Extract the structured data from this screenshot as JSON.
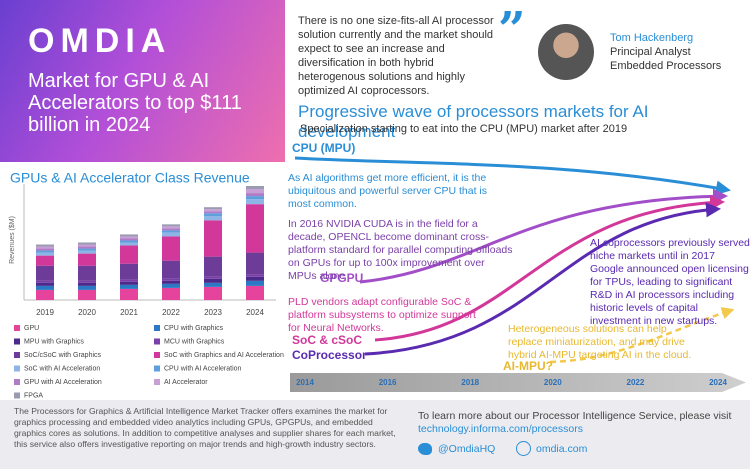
{
  "header": {
    "logo": "OMDIA",
    "title": "Market for GPU & AI Accelerators to top $111 billion in 2024"
  },
  "quote": {
    "text": "There is no one size-fits-all AI processor solution currently and the market should expect to see an increase and diversification in both hybrid heterogenous solutions and highly optimized AI coprocessors.",
    "name": "Tom Hackenberg",
    "role": "Principal Analyst",
    "department": "Embedded Processors"
  },
  "chart_data": {
    "type": "bar",
    "title": "GPUs & AI Accelerator Class Revenue",
    "y_label": "Revenues ($M)",
    "stacked": true,
    "categories": [
      "2019",
      "2020",
      "2021",
      "2022",
      "2023",
      "2024"
    ],
    "ylim": [
      0,
      115000
    ],
    "series": [
      {
        "name": "GPU",
        "color": "#e6449c",
        "values": [
          10000,
          10000,
          11000,
          12000,
          13000,
          14000
        ]
      },
      {
        "name": "CPU with Graphics",
        "color": "#2b78c4",
        "values": [
          4000,
          4000,
          4000,
          4000,
          4000,
          5000
        ]
      },
      {
        "name": "MPU with Graphics",
        "color": "#4b2a8c",
        "values": [
          3000,
          3000,
          3000,
          3000,
          4000,
          4000
        ]
      },
      {
        "name": "MCU with Graphics",
        "color": "#7a3fa8",
        "values": [
          2000,
          2000,
          2000,
          2000,
          2000,
          2000
        ]
      },
      {
        "name": "SoC/cSoC with Graphics",
        "color": "#6c3c98",
        "values": [
          15000,
          15000,
          16000,
          18000,
          20000,
          22000
        ]
      },
      {
        "name": "SoC with Graphics and AI Acceleration",
        "color": "#d2389a",
        "values": [
          10000,
          12000,
          18000,
          24000,
          36000,
          48000
        ]
      },
      {
        "name": "SoC with AI Acceleration",
        "color": "#8fb4e6",
        "values": [
          3000,
          3000,
          3000,
          4000,
          4000,
          5000
        ]
      },
      {
        "name": "CPU with AI Acceleration",
        "color": "#5ea0dc",
        "values": [
          2000,
          2000,
          2000,
          2000,
          3000,
          3000
        ]
      },
      {
        "name": "GPU with AI Acceleration",
        "color": "#b07cc8",
        "values": [
          2000,
          2000,
          2000,
          2000,
          2000,
          3000
        ]
      },
      {
        "name": "AI Accelerator",
        "color": "#c8a0d6",
        "values": [
          2000,
          2000,
          2000,
          2000,
          2000,
          4000
        ]
      },
      {
        "name": "FPGA",
        "color": "#9a9ab0",
        "values": [
          2000,
          2000,
          2000,
          2000,
          2000,
          3000
        ]
      }
    ]
  },
  "diagram": {
    "title": "Progressive wave of processors markets for AI development",
    "subtitle": "Specialization starting to eat into the CPU (MPU) market after 2019",
    "labels": {
      "cpu": "CPU (MPU)",
      "gpgpu": "GPGPU",
      "soc": "SoC & cSoC",
      "coprocessor": "CoProcessor",
      "aimpu": "AI-MPU?"
    },
    "notes": [
      "As AI algorithms get more efficient, it is the ubiquitous and powerful server CPU that is most common.",
      "In 2016 NVIDIA CUDA is in the field for a decade, OPENCL become dominant cross-platform standard for parallel computing offloads on GPUs for up to 100x improvement over MPUs alone",
      "PLD vendors adapt configurable SoC & platform subsystems to optimize support for Neural Networks.",
      "AI coprocessors previously served niche markets until in 2017 Google announced open licensing for TPUs, leading to significant R&D in AI processors including historic levels of capital investment in new startups.",
      "Heterogeneous solutions can help replace miniaturization, and may drive hybrid AI-MPU targeting AI in the cloud."
    ],
    "timeline": [
      2014,
      2016,
      2018,
      2020,
      2022,
      2024
    ]
  },
  "footer": {
    "description": "The Processors for Graphics & Artificial Intelligence Market Tracker offers examines the market for graphics processing and embedded video analytics including GPUs, GPGPUs, and embedded graphics cores as solutions. In addition to competitive analyses and supplier shares for each market, this service also offers investigative reporting on major trends and high-growth industry sectors.",
    "cta": "To learn more about our Processor Intelligence Service, please visit",
    "url": "technology.informa.com/processors",
    "twitter": "@OmdiaHQ",
    "site": "omdia.com"
  }
}
